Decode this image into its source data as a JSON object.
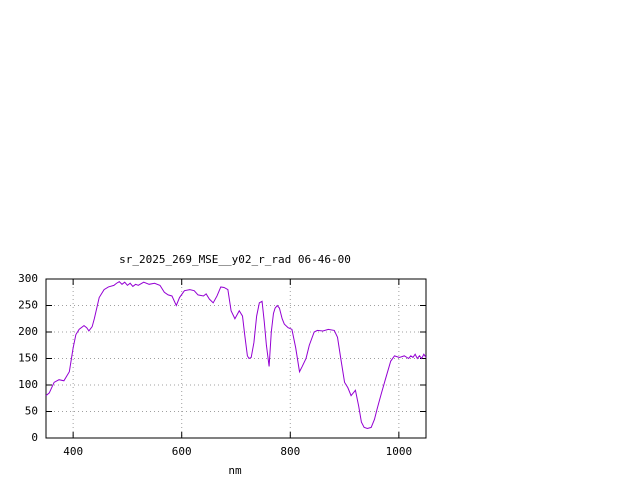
{
  "chart_data": {
    "type": "line",
    "title": "sr_2025_269_MSE__y02_r_rad 06-46-00",
    "xlabel": "nm",
    "x": [
      350,
      356,
      365,
      374,
      383,
      393,
      400,
      405,
      411,
      420,
      425,
      429,
      435,
      439,
      448,
      457,
      465,
      475,
      480,
      485,
      490,
      495,
      500,
      505,
      510,
      515,
      520,
      530,
      540,
      550,
      560,
      568,
      575,
      582,
      590,
      596,
      605,
      615,
      623,
      630,
      640,
      645,
      651,
      658,
      665,
      672,
      678,
      685,
      691,
      698,
      706,
      712,
      716,
      721,
      724,
      728,
      733,
      738,
      743,
      748,
      752,
      756,
      761,
      765,
      769,
      772,
      776,
      780,
      785,
      789,
      796,
      803,
      810,
      817,
      822,
      829,
      835,
      844,
      850,
      860,
      870,
      881,
      887,
      893,
      900,
      906,
      912,
      916,
      920,
      926,
      931,
      936,
      942,
      949,
      955,
      960,
      964,
      968,
      975,
      985,
      992,
      1001,
      1010,
      1018,
      1022,
      1026,
      1030,
      1034,
      1038,
      1042,
      1046,
      1050
    ],
    "series": [
      {
        "name": "rad",
        "color": "#9400d3",
        "values": [
          80,
          85,
          105,
          110,
          108,
          125,
          170,
          195,
          205,
          212,
          208,
          202,
          210,
          225,
          265,
          280,
          285,
          288,
          292,
          295,
          290,
          294,
          288,
          292,
          286,
          290,
          288,
          294,
          290,
          292,
          288,
          275,
          270,
          268,
          250,
          265,
          278,
          280,
          278,
          270,
          268,
          272,
          262,
          255,
          268,
          285,
          284,
          280,
          240,
          225,
          240,
          230,
          195,
          155,
          150,
          152,
          180,
          230,
          255,
          258,
          220,
          175,
          135,
          200,
          235,
          245,
          250,
          245,
          225,
          215,
          208,
          205,
          170,
          125,
          135,
          150,
          175,
          200,
          203,
          202,
          205,
          203,
          190,
          150,
          105,
          95,
          80,
          85,
          90,
          60,
          30,
          20,
          18,
          20,
          35,
          55,
          70,
          85,
          110,
          145,
          155,
          152,
          155,
          150,
          155,
          152,
          158,
          150,
          155,
          150,
          158,
          152
        ]
      }
    ],
    "xlim": [
      350,
      1050
    ],
    "ylim": [
      0,
      300
    ],
    "xticks": [
      400,
      600,
      800,
      1000
    ],
    "yticks": [
      0,
      50,
      100,
      150,
      200,
      250,
      300
    ],
    "grid": true
  }
}
